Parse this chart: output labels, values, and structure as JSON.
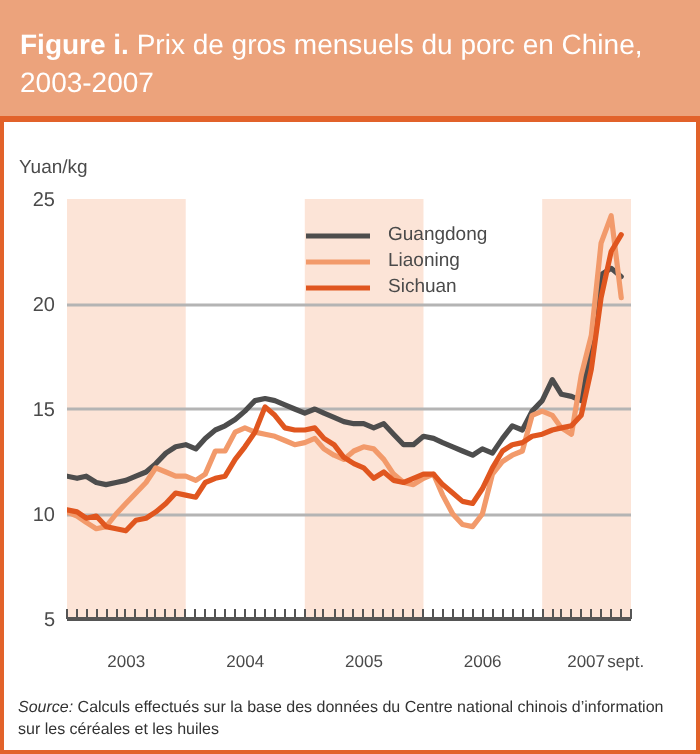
{
  "chart_data": {
    "type": "line",
    "title": "Figure i. Prix de gros mensuels du porc en Chine, 2003-2007",
    "ylabel": "Yuan/kg",
    "x": [
      "2003-01",
      "2003-02",
      "2003-03",
      "2003-04",
      "2003-05",
      "2003-06",
      "2003-07",
      "2003-08",
      "2003-09",
      "2003-10",
      "2003-11",
      "2003-12",
      "2004-01",
      "2004-02",
      "2004-03",
      "2004-04",
      "2004-05",
      "2004-06",
      "2004-07",
      "2004-08",
      "2004-09",
      "2004-10",
      "2004-11",
      "2004-12",
      "2005-01",
      "2005-02",
      "2005-03",
      "2005-04",
      "2005-05",
      "2005-06",
      "2005-07",
      "2005-08",
      "2005-09",
      "2005-10",
      "2005-11",
      "2005-12",
      "2006-01",
      "2006-02",
      "2006-03",
      "2006-04",
      "2006-05",
      "2006-06",
      "2006-07",
      "2006-08",
      "2006-09",
      "2006-10",
      "2006-11",
      "2006-12",
      "2007-01",
      "2007-02",
      "2007-03",
      "2007-04",
      "2007-05",
      "2007-06",
      "2007-07",
      "2007-08",
      "2007-09"
    ],
    "series": [
      {
        "name": "Guangdong",
        "color": "#4d4d4d",
        "values": [
          11.8,
          11.7,
          11.8,
          11.5,
          11.4,
          11.5,
          11.6,
          11.8,
          12.0,
          12.4,
          12.9,
          13.2,
          13.3,
          13.1,
          13.6,
          14.0,
          14.2,
          14.5,
          14.9,
          15.4,
          15.5,
          15.4,
          15.2,
          15.0,
          14.8,
          15.0,
          14.8,
          14.6,
          14.4,
          14.3,
          14.3,
          14.1,
          14.3,
          13.8,
          13.3,
          13.3,
          13.7,
          13.6,
          13.4,
          13.2,
          13.0,
          12.8,
          13.1,
          12.9,
          13.6,
          14.2,
          14.0,
          14.9,
          15.4,
          16.4,
          15.7,
          15.6,
          15.4,
          18.0,
          21.4,
          21.7,
          21.3
        ]
      },
      {
        "name": "Liaoning",
        "color": "#f29a6b",
        "values": [
          10.1,
          9.9,
          9.6,
          9.3,
          9.4,
          10.0,
          10.5,
          11.0,
          11.5,
          12.2,
          12.0,
          11.8,
          11.8,
          11.6,
          11.9,
          13.0,
          13.0,
          13.9,
          14.1,
          13.9,
          13.8,
          13.7,
          13.5,
          13.3,
          13.4,
          13.6,
          13.1,
          12.8,
          12.6,
          13.0,
          13.2,
          13.1,
          12.6,
          11.9,
          11.5,
          11.4,
          11.7,
          11.9,
          10.9,
          10.0,
          9.5,
          9.4,
          10.0,
          11.9,
          12.5,
          12.8,
          13.0,
          14.7,
          14.9,
          14.7,
          14.1,
          13.8,
          16.6,
          18.5,
          22.9,
          24.2,
          20.3
        ]
      },
      {
        "name": "Sichuan",
        "color": "#e0561f",
        "values": [
          10.2,
          10.1,
          9.8,
          9.9,
          9.4,
          9.3,
          9.2,
          9.7,
          9.8,
          10.1,
          10.5,
          11.0,
          10.9,
          10.8,
          11.5,
          11.7,
          11.8,
          12.6,
          13.2,
          13.9,
          15.1,
          14.7,
          14.1,
          14.0,
          14.0,
          14.1,
          13.6,
          13.3,
          12.7,
          12.4,
          12.2,
          11.7,
          12.0,
          11.6,
          11.5,
          11.7,
          11.9,
          11.9,
          11.4,
          11.0,
          10.6,
          10.5,
          11.2,
          12.2,
          13.0,
          13.3,
          13.4,
          13.7,
          13.8,
          14.0,
          14.1,
          14.2,
          14.7,
          16.9,
          20.3,
          22.5,
          23.3
        ]
      }
    ],
    "xlim": [
      "2003-01",
      "2007-10"
    ],
    "xticks": [
      {
        "value": "2003-01",
        "label": null
      },
      {
        "value": "2003-02",
        "label": null
      },
      {
        "value": "2003-03",
        "label": null
      },
      {
        "value": "2003-04",
        "label": null
      },
      {
        "value": "2003-05",
        "label": null
      },
      {
        "value": "2003-06",
        "label": null
      },
      {
        "value": "2003-07",
        "label": null
      },
      {
        "value": "2003-08",
        "label": null
      },
      {
        "value": "2003-09",
        "label": null
      },
      {
        "value": "2003-10",
        "label": null
      },
      {
        "value": "2003-11",
        "label": null
      },
      {
        "value": "2003-12",
        "label": null
      },
      {
        "value": "2004-01",
        "label": null
      },
      {
        "value": "2004-02",
        "label": null
      },
      {
        "value": "2004-03",
        "label": null
      },
      {
        "value": "2004-04",
        "label": null
      },
      {
        "value": "2004-05",
        "label": null
      },
      {
        "value": "2004-06",
        "label": null
      },
      {
        "value": "2004-07",
        "label": null
      },
      {
        "value": "2004-08",
        "label": null
      },
      {
        "value": "2004-09",
        "label": null
      },
      {
        "value": "2004-10",
        "label": null
      },
      {
        "value": "2004-11",
        "label": null
      },
      {
        "value": "2004-12",
        "label": null
      },
      {
        "value": "2005-01",
        "label": null
      },
      {
        "value": "2005-02",
        "label": null
      },
      {
        "value": "2005-03",
        "label": null
      },
      {
        "value": "2005-04",
        "label": null
      },
      {
        "value": "2005-05",
        "label": null
      },
      {
        "value": "2005-06",
        "label": null
      },
      {
        "value": "2005-07",
        "label": null
      },
      {
        "value": "2005-08",
        "label": null
      },
      {
        "value": "2005-09",
        "label": null
      },
      {
        "value": "2005-10",
        "label": null
      },
      {
        "value": "2005-11",
        "label": null
      },
      {
        "value": "2005-12",
        "label": null
      },
      {
        "value": "2006-01",
        "label": null
      },
      {
        "value": "2006-02",
        "label": null
      },
      {
        "value": "2006-03",
        "label": null
      },
      {
        "value": "2006-04",
        "label": null
      },
      {
        "value": "2006-05",
        "label": null
      },
      {
        "value": "2006-06",
        "label": null
      },
      {
        "value": "2006-07",
        "label": null
      },
      {
        "value": "2006-08",
        "label": null
      },
      {
        "value": "2006-09",
        "label": null
      },
      {
        "value": "2006-10",
        "label": null
      },
      {
        "value": "2006-11",
        "label": null
      },
      {
        "value": "2006-12",
        "label": null
      },
      {
        "value": "2007-01",
        "label": null
      },
      {
        "value": "2007-02",
        "label": null
      },
      {
        "value": "2007-03",
        "label": null
      },
      {
        "value": "2007-04",
        "label": null
      },
      {
        "value": "2007-05",
        "label": null
      },
      {
        "value": "2007-06",
        "label": null
      },
      {
        "value": "2007-07",
        "label": null
      },
      {
        "value": "2007-08",
        "label": null
      },
      {
        "value": "2007-09",
        "label": null
      },
      {
        "value": "2007-10",
        "label": null
      },
      {
        "value": "2003-07-02",
        "label": "2003"
      },
      {
        "value": "2004-07-02",
        "label": "2004"
      },
      {
        "value": "2005-07-02",
        "label": "2005"
      },
      {
        "value": "2006-07-02",
        "label": "2006"
      },
      {
        "value": "2007-05-16",
        "label": "2007"
      },
      {
        "value": "2007-09-15",
        "label": "sept."
      }
    ],
    "ylim": [
      5,
      25
    ],
    "yticks": [
      5,
      10,
      15,
      20,
      25
    ],
    "grid": "y",
    "legend": "top right",
    "bands": [
      {
        "axis": "x",
        "from": "2003-01",
        "to": "2004-01",
        "color": "#fce4d7"
      },
      {
        "axis": "x",
        "from": "2005-01",
        "to": "2006-01",
        "color": "#fce4d7"
      },
      {
        "axis": "x",
        "from": "2007-01",
        "to": "2007-10",
        "color": "#fce4d7"
      }
    ],
    "annotations": [
      "Source: Calculs effectués sur la base des données du Centre national chinois d’information sur les céréales et les huiles"
    ]
  }
}
